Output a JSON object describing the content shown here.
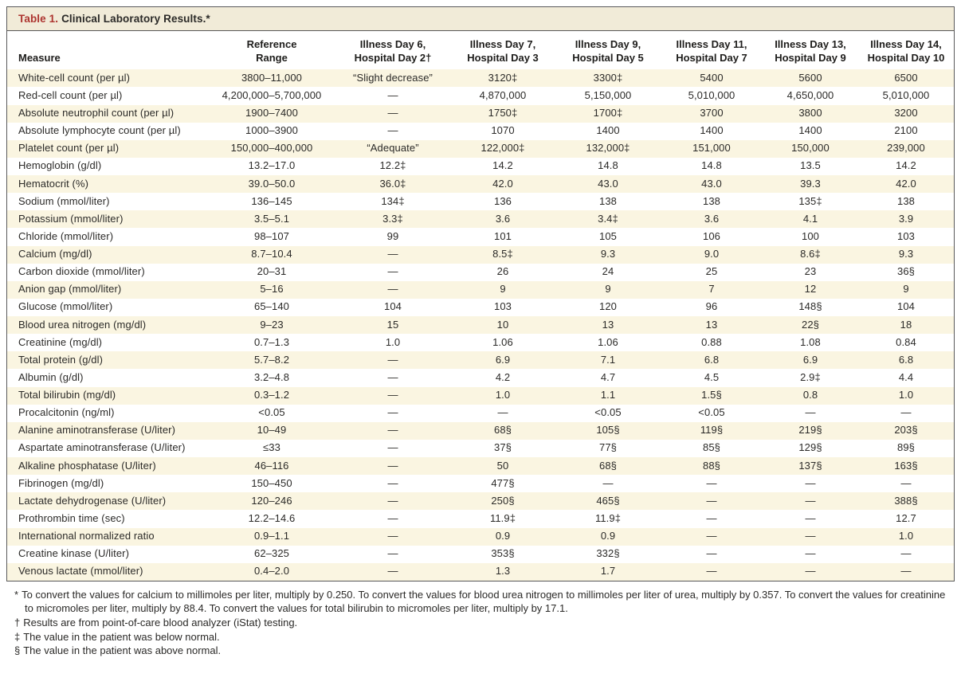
{
  "table": {
    "title_label": "Table 1.",
    "title_text": "Clinical Laboratory Results.*",
    "columns": [
      "Measure",
      "Reference\nRange",
      "Illness Day 6,\nHospital Day 2†",
      "Illness Day 7,\nHospital Day 3",
      "Illness Day 9,\nHospital Day 5",
      "Illness Day 11,\nHospital Day 7",
      "Illness Day 13,\nHospital Day 9",
      "Illness Day 14,\nHospital Day 10"
    ],
    "rows": [
      {
        "measure": "White-cell count (per µl)",
        "values": [
          "3800–11,000",
          "“Slight decrease”",
          "3120‡",
          "3300‡",
          "5400",
          "5600",
          "6500"
        ]
      },
      {
        "measure": "Red-cell count (per µl)",
        "values": [
          "4,200,000–5,700,000",
          "—",
          "4,870,000",
          "5,150,000",
          "5,010,000",
          "4,650,000",
          "5,010,000"
        ]
      },
      {
        "measure": "Absolute neutrophil count (per µl)",
        "values": [
          "1900–7400",
          "—",
          "1750‡",
          "1700‡",
          "3700",
          "3800",
          "3200"
        ]
      },
      {
        "measure": "Absolute lymphocyte count (per µl)",
        "values": [
          "1000–3900",
          "—",
          "1070",
          "1400",
          "1400",
          "1400",
          "2100"
        ]
      },
      {
        "measure": "Platelet count (per µl)",
        "values": [
          "150,000–400,000",
          "“Adequate”",
          "122,000‡",
          "132,000‡",
          "151,000",
          "150,000",
          "239,000"
        ]
      },
      {
        "measure": "Hemoglobin (g/dl)",
        "values": [
          "13.2–17.0",
          "12.2‡",
          "14.2",
          "14.8",
          "14.8",
          "13.5",
          "14.2"
        ]
      },
      {
        "measure": "Hematocrit (%)",
        "values": [
          "39.0–50.0",
          "36.0‡",
          "42.0",
          "43.0",
          "43.0",
          "39.3",
          "42.0"
        ]
      },
      {
        "measure": "Sodium (mmol/liter)",
        "values": [
          "136–145",
          "134‡",
          "136",
          "138",
          "138",
          "135‡",
          "138"
        ]
      },
      {
        "measure": "Potassium (mmol/liter)",
        "values": [
          "3.5–5.1",
          "3.3‡",
          "3.6",
          "3.4‡",
          "3.6",
          "4.1",
          "3.9"
        ]
      },
      {
        "measure": "Chloride (mmol/liter)",
        "values": [
          "98–107",
          "99",
          "101",
          "105",
          "106",
          "100",
          "103"
        ]
      },
      {
        "measure": "Calcium (mg/dl)",
        "values": [
          "8.7–10.4",
          "—",
          "8.5‡",
          "9.3",
          "9.0",
          "8.6‡",
          "9.3"
        ]
      },
      {
        "measure": "Carbon dioxide (mmol/liter)",
        "values": [
          "20–31",
          "—",
          "26",
          "24",
          "25",
          "23",
          "36§"
        ]
      },
      {
        "measure": "Anion gap (mmol/liter)",
        "values": [
          "5–16",
          "—",
          "9",
          "9",
          "7",
          "12",
          "9"
        ]
      },
      {
        "measure": "Glucose (mmol/liter)",
        "values": [
          "65–140",
          "104",
          "103",
          "120",
          "96",
          "148§",
          "104"
        ]
      },
      {
        "measure": "Blood urea nitrogen (mg/dl)",
        "values": [
          "9–23",
          "15",
          "10",
          "13",
          "13",
          "22§",
          "18"
        ]
      },
      {
        "measure": "Creatinine (mg/dl)",
        "values": [
          "0.7–1.3",
          "1.0",
          "1.06",
          "1.06",
          "0.88",
          "1.08",
          "0.84"
        ]
      },
      {
        "measure": "Total protein (g/dl)",
        "values": [
          "5.7–8.2",
          "—",
          "6.9",
          "7.1",
          "6.8",
          "6.9",
          "6.8"
        ]
      },
      {
        "measure": "Albumin (g/dl)",
        "values": [
          "3.2–4.8",
          "—",
          "4.2",
          "4.7",
          "4.5",
          "2.9‡",
          "4.4"
        ]
      },
      {
        "measure": "Total bilirubin (mg/dl)",
        "values": [
          "0.3–1.2",
          "—",
          "1.0",
          "1.1",
          "1.5§",
          "0.8",
          "1.0"
        ]
      },
      {
        "measure": "Procalcitonin (ng/ml)",
        "values": [
          "<0.05",
          "—",
          "—",
          "<0.05",
          "<0.05",
          "—",
          "—"
        ]
      },
      {
        "measure": "Alanine aminotransferase (U/liter)",
        "values": [
          "10–49",
          "—",
          "68§",
          "105§",
          "119§",
          "219§",
          "203§"
        ]
      },
      {
        "measure": "Aspartate aminotransferase (U/liter)",
        "values": [
          "≤33",
          "—",
          "37§",
          "77§",
          "85§",
          "129§",
          "89§"
        ]
      },
      {
        "measure": "Alkaline phosphatase (U/liter)",
        "values": [
          "46–116",
          "—",
          "50",
          "68§",
          "88§",
          "137§",
          "163§"
        ]
      },
      {
        "measure": "Fibrinogen (mg/dl)",
        "values": [
          "150–450",
          "—",
          "477§",
          "—",
          "—",
          "—",
          "—"
        ]
      },
      {
        "measure": "Lactate dehydrogenase (U/liter)",
        "values": [
          "120–246",
          "—",
          "250§",
          "465§",
          "—",
          "—",
          "388§"
        ]
      },
      {
        "measure": "Prothrombin time (sec)",
        "values": [
          "12.2–14.6",
          "—",
          "11.9‡",
          "11.9‡",
          "—",
          "—",
          "12.7"
        ]
      },
      {
        "measure": "International normalized ratio",
        "values": [
          "0.9–1.1",
          "—",
          "0.9",
          "0.9",
          "—",
          "—",
          "1.0"
        ]
      },
      {
        "measure": "Creatine kinase (U/liter)",
        "values": [
          "62–325",
          "—",
          "353§",
          "332§",
          "—",
          "—",
          "—"
        ]
      },
      {
        "measure": "Venous lactate (mmol/liter)",
        "values": [
          "0.4–2.0",
          "—",
          "1.3",
          "1.7",
          "—",
          "—",
          "—"
        ]
      }
    ]
  },
  "footnotes": [
    {
      "marker": "*",
      "text": "To convert the values for calcium to millimoles per liter, multiply by 0.250. To convert the values for blood urea nitrogen to millimoles per liter of urea, multiply by 0.357. To convert the values for creatinine to micromoles per liter, multiply by 88.4. To convert the values for total bilirubin to micromoles per liter, multiply by 17.1."
    },
    {
      "marker": "†",
      "text": "Results are from point-of-care blood analyzer (iStat) testing."
    },
    {
      "marker": "‡",
      "text": "The value in the patient was below normal."
    },
    {
      "marker": "§",
      "text": "The value in the patient was above normal."
    }
  ],
  "colors": {
    "stripe_cream": "#faf5e1",
    "title_band": "#f1ebd8",
    "table_number_red": "#ad3530",
    "border_gray": "#58585a"
  }
}
